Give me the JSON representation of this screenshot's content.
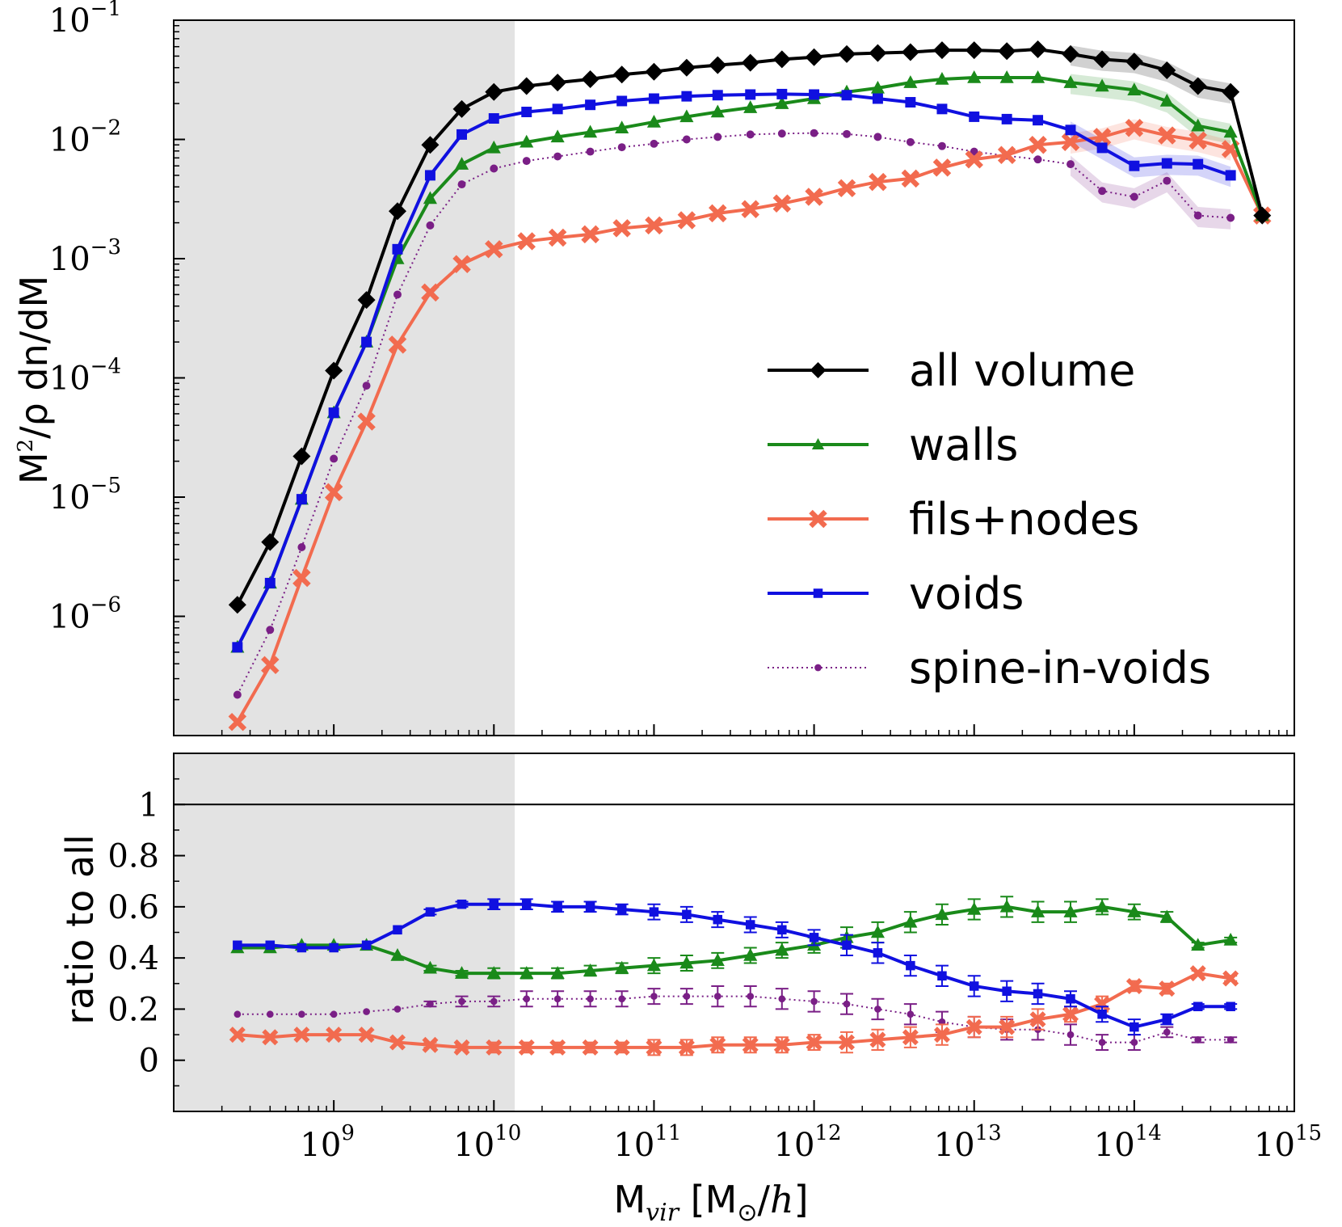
{
  "chart_data": [
    {
      "type": "line",
      "panel": "top",
      "xscale": "log",
      "yscale": "log",
      "xlim": [
        100000000.0,
        1000000000000000.0
      ],
      "ylim": [
        1e-07,
        0.1
      ],
      "shaded_region_x": [
        100000000.0,
        13500000000.0
      ],
      "ylabel": "M²/ρ dn/dM",
      "y_ticks": [
        {
          "base": "10",
          "exp": "−1",
          "value": 0.1
        },
        {
          "base": "10",
          "exp": "−2",
          "value": 0.01
        },
        {
          "base": "10",
          "exp": "−3",
          "value": 0.001
        },
        {
          "base": "10",
          "exp": "−4",
          "value": 0.0001
        },
        {
          "base": "10",
          "exp": "−5",
          "value": 1e-05
        },
        {
          "base": "10",
          "exp": "−6",
          "value": 1e-06
        }
      ],
      "x": [
        250000000.0,
        400000000.0,
        630000000.0,
        1000000000.0,
        1600000000.0,
        2500000000.0,
        4000000000.0,
        6300000000.0,
        10000000000.0,
        16000000000.0,
        25000000000.0,
        40000000000.0,
        63000000000.0,
        100000000000.0,
        160000000000.0,
        250000000000.0,
        400000000000.0,
        630000000000.0,
        1000000000000.0,
        1600000000000.0,
        2500000000000.0,
        4000000000000.0,
        6300000000000.0,
        10000000000000.0,
        16000000000000.0,
        25000000000000.0,
        40000000000000.0,
        63000000000000.0,
        100000000000000.0,
        160000000000000.0,
        250000000000000.0,
        400000000000000.0,
        630000000000000.0
      ],
      "series": [
        {
          "name": "all volume",
          "color": "#000000",
          "marker": "diamond",
          "linestyle": "solid",
          "values": [
            1.25e-06,
            4.2e-06,
            2.2e-05,
            0.000115,
            0.00045,
            0.0025,
            0.009,
            0.018,
            0.025,
            0.028,
            0.03,
            0.032,
            0.035,
            0.037,
            0.04,
            0.042,
            0.044,
            0.047,
            0.049,
            0.052,
            0.053,
            0.054,
            0.056,
            0.056,
            0.055,
            0.057,
            0.052,
            0.047,
            0.045,
            0.038,
            0.028,
            0.025,
            0.0023
          ]
        },
        {
          "name": "walls",
          "color": "#1a8a1a",
          "marker": "triangle",
          "linestyle": "solid",
          "values": [
            5.5e-07,
            1.9e-06,
            9.6e-06,
            5.1e-05,
            0.0002,
            0.001,
            0.0032,
            0.0062,
            0.0085,
            0.0095,
            0.0105,
            0.0115,
            0.0125,
            0.014,
            0.0155,
            0.017,
            0.0185,
            0.02,
            0.022,
            0.025,
            0.027,
            0.03,
            0.032,
            0.033,
            0.033,
            0.033,
            0.03,
            0.028,
            0.026,
            0.021,
            0.013,
            0.0115,
            0.0023
          ]
        },
        {
          "name": "fils+nodes",
          "color": "#f26b4f",
          "marker": "x",
          "linestyle": "solid",
          "values": [
            1.3e-07,
            3.9e-07,
            2.1e-06,
            1.1e-05,
            4.3e-05,
            0.00019,
            0.00052,
            0.0009,
            0.0012,
            0.0014,
            0.0015,
            0.0016,
            0.0018,
            0.0019,
            0.0021,
            0.0024,
            0.0026,
            0.0029,
            0.0033,
            0.0039,
            0.0044,
            0.0047,
            0.0058,
            0.0068,
            0.0074,
            0.009,
            0.0095,
            0.0105,
            0.0125,
            0.0108,
            0.0098,
            0.0083,
            0.0023
          ]
        },
        {
          "name": "voids",
          "color": "#1010e0",
          "marker": "square",
          "linestyle": "solid",
          "values": [
            5.5e-07,
            1.9e-06,
            9.6e-06,
            5.1e-05,
            0.0002,
            0.0012,
            0.005,
            0.011,
            0.015,
            0.017,
            0.018,
            0.0195,
            0.021,
            0.022,
            0.023,
            0.0235,
            0.0238,
            0.024,
            0.0238,
            0.0235,
            0.022,
            0.0205,
            0.018,
            0.0155,
            0.0148,
            0.0145,
            0.012,
            0.0085,
            0.006,
            0.0063,
            0.0062,
            0.005,
            null
          ]
        },
        {
          "name": "spine-in-voids",
          "color": "#7a1f86",
          "marker": "circle",
          "linestyle": "dotted",
          "values": [
            2.2e-07,
            7.7e-07,
            3.8e-06,
            2.1e-05,
            8.6e-05,
            0.0005,
            0.0019,
            0.0042,
            0.0057,
            0.0066,
            0.0072,
            0.0079,
            0.0086,
            0.0092,
            0.01,
            0.0105,
            0.011,
            0.0112,
            0.0113,
            0.0111,
            0.0105,
            0.0095,
            0.0088,
            0.0079,
            0.0073,
            0.0068,
            0.0062,
            0.0037,
            0.0033,
            0.0045,
            0.0023,
            0.0022,
            null
          ]
        }
      ],
      "legend": {
        "location": "center-right",
        "entries": [
          "all volume",
          "walls",
          "fils+nodes",
          "voids",
          "spine-in-voids"
        ]
      }
    },
    {
      "type": "line",
      "panel": "bottom",
      "xscale": "log",
      "yscale": "linear",
      "xlim": [
        100000000.0,
        1000000000000000.0
      ],
      "ylim": [
        -0.2,
        1.2
      ],
      "reference_line_y": 1.0,
      "ylabel": "ratio to all",
      "xlabel": "M_vir [M_⊙/h]",
      "y_ticks": [
        {
          "label": "1",
          "value": 1.0
        },
        {
          "label": "0.8",
          "value": 0.8
        },
        {
          "label": "0.6",
          "value": 0.6
        },
        {
          "label": "0.4",
          "value": 0.4
        },
        {
          "label": "0.2",
          "value": 0.2
        },
        {
          "label": "0",
          "value": 0.0
        }
      ],
      "x_ticks": [
        {
          "base": "10",
          "exp": "9",
          "value": 1000000000.0
        },
        {
          "base": "10",
          "exp": "10",
          "value": 10000000000.0
        },
        {
          "base": "10",
          "exp": "11",
          "value": 100000000000.0
        },
        {
          "base": "10",
          "exp": "12",
          "value": 1000000000000.0
        },
        {
          "base": "10",
          "exp": "13",
          "value": 10000000000000.0
        },
        {
          "base": "10",
          "exp": "14",
          "value": 100000000000000.0
        },
        {
          "base": "10",
          "exp": "15",
          "value": 1000000000000000.0
        }
      ],
      "x": [
        250000000.0,
        400000000.0,
        630000000.0,
        1000000000.0,
        1600000000.0,
        2500000000.0,
        4000000000.0,
        6300000000.0,
        10000000000.0,
        16000000000.0,
        25000000000.0,
        40000000000.0,
        63000000000.0,
        100000000000.0,
        160000000000.0,
        250000000000.0,
        400000000000.0,
        630000000000.0,
        1000000000000.0,
        1600000000000.0,
        2500000000000.0,
        4000000000000.0,
        6300000000000.0,
        10000000000000.0,
        16000000000000.0,
        25000000000000.0,
        40000000000000.0,
        63000000000000.0,
        100000000000000.0,
        160000000000000.0,
        250000000000000.0,
        400000000000000.0
      ],
      "series": [
        {
          "name": "walls",
          "color": "#1a8a1a",
          "marker": "triangle",
          "linestyle": "solid",
          "values": [
            0.44,
            0.44,
            0.45,
            0.45,
            0.45,
            0.41,
            0.36,
            0.34,
            0.34,
            0.34,
            0.34,
            0.35,
            0.36,
            0.37,
            0.38,
            0.39,
            0.41,
            0.43,
            0.45,
            0.48,
            0.5,
            0.54,
            0.57,
            0.59,
            0.6,
            0.58,
            0.58,
            0.6,
            0.58,
            0.56,
            0.45,
            0.47
          ],
          "errors": [
            0.0,
            0.0,
            0.0,
            0.0,
            0.0,
            0.0,
            0.01,
            0.01,
            0.02,
            0.02,
            0.02,
            0.02,
            0.02,
            0.03,
            0.03,
            0.03,
            0.03,
            0.03,
            0.03,
            0.04,
            0.04,
            0.04,
            0.04,
            0.04,
            0.04,
            0.04,
            0.04,
            0.03,
            0.03,
            0.02,
            0.01,
            0.01
          ]
        },
        {
          "name": "voids",
          "color": "#1010e0",
          "marker": "square",
          "linestyle": "solid",
          "values": [
            0.45,
            0.45,
            0.44,
            0.44,
            0.45,
            0.51,
            0.58,
            0.61,
            0.61,
            0.61,
            0.6,
            0.6,
            0.59,
            0.58,
            0.57,
            0.55,
            0.53,
            0.51,
            0.48,
            0.45,
            0.42,
            0.37,
            0.33,
            0.29,
            0.27,
            0.26,
            0.24,
            0.18,
            0.13,
            0.16,
            0.21,
            0.21
          ],
          "errors": [
            0.0,
            0.0,
            0.0,
            0.0,
            0.0,
            0.0,
            0.01,
            0.01,
            0.02,
            0.02,
            0.02,
            0.02,
            0.02,
            0.03,
            0.03,
            0.03,
            0.03,
            0.03,
            0.03,
            0.04,
            0.04,
            0.04,
            0.04,
            0.04,
            0.04,
            0.04,
            0.03,
            0.03,
            0.03,
            0.02,
            0.01,
            0.01
          ]
        },
        {
          "name": "spine-in-voids",
          "color": "#7a1f86",
          "marker": "circle",
          "linestyle": "dotted",
          "values": [
            0.18,
            0.18,
            0.18,
            0.18,
            0.19,
            0.2,
            0.22,
            0.23,
            0.23,
            0.24,
            0.24,
            0.24,
            0.24,
            0.25,
            0.25,
            0.25,
            0.25,
            0.24,
            0.23,
            0.22,
            0.2,
            0.18,
            0.15,
            0.13,
            0.12,
            0.12,
            0.1,
            0.07,
            0.07,
            0.11,
            0.08,
            0.08
          ],
          "errors": [
            0.0,
            0.0,
            0.0,
            0.0,
            0.0,
            0.0,
            0.01,
            0.02,
            0.02,
            0.03,
            0.03,
            0.03,
            0.03,
            0.03,
            0.03,
            0.04,
            0.04,
            0.04,
            0.04,
            0.04,
            0.04,
            0.04,
            0.04,
            0.04,
            0.04,
            0.04,
            0.04,
            0.03,
            0.03,
            0.02,
            0.01,
            0.01
          ]
        },
        {
          "name": "fils+nodes",
          "color": "#f26b4f",
          "marker": "x",
          "linestyle": "solid",
          "values": [
            0.1,
            0.09,
            0.1,
            0.1,
            0.1,
            0.07,
            0.06,
            0.05,
            0.05,
            0.05,
            0.05,
            0.05,
            0.05,
            0.05,
            0.05,
            0.06,
            0.06,
            0.06,
            0.07,
            0.07,
            0.08,
            0.09,
            0.1,
            0.13,
            0.13,
            0.16,
            0.18,
            0.22,
            0.29,
            0.28,
            0.34,
            0.32
          ],
          "errors": [
            0.0,
            0.0,
            0.0,
            0.0,
            0.0,
            0.0,
            0.01,
            0.01,
            0.02,
            0.02,
            0.02,
            0.02,
            0.02,
            0.03,
            0.03,
            0.03,
            0.03,
            0.03,
            0.03,
            0.04,
            0.04,
            0.04,
            0.04,
            0.04,
            0.04,
            0.04,
            0.03,
            0.03,
            0.02,
            0.02,
            0.01,
            0.01
          ]
        }
      ]
    }
  ]
}
